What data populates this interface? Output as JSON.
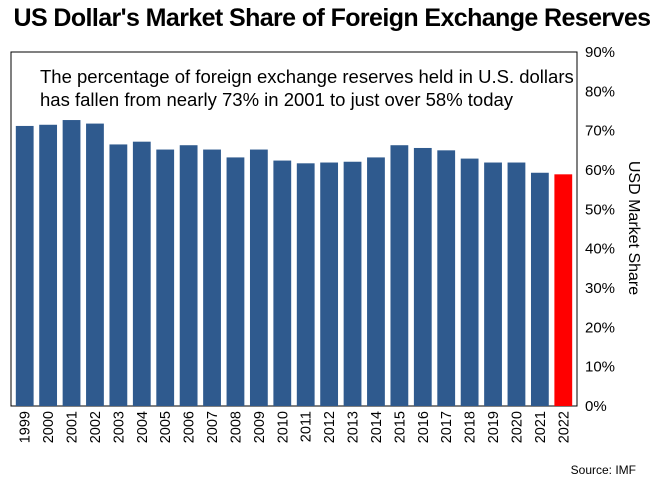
{
  "chart_data": {
    "type": "bar",
    "title": "US Dollar's Market Share of Foreign Exchange Reserves",
    "annotation": [
      "The percentage of foreign exchange reserves held in U.S. dollars",
      "has fallen from nearly 73% in 2001 to just over 58% today"
    ],
    "ylabel": "USD Market Share",
    "xlabel": "",
    "ylim": [
      0,
      90
    ],
    "yticks": [
      "0%",
      "10%",
      "20%",
      "30%",
      "40%",
      "50%",
      "60%",
      "70%",
      "80%",
      "90%"
    ],
    "y_axis_position": "right",
    "grid": false,
    "categories": [
      "1999",
      "2000",
      "2001",
      "2002",
      "2003",
      "2004",
      "2005",
      "2006",
      "2007",
      "2008",
      "2009",
      "2010",
      "2011",
      "2012",
      "2013",
      "2014",
      "2015",
      "2016",
      "2017",
      "2018",
      "2019",
      "2020",
      "2021",
      "2022"
    ],
    "values": [
      71.2,
      71.5,
      72.7,
      71.8,
      66.5,
      67.2,
      65.2,
      66.3,
      65.2,
      63.2,
      65.2,
      62.4,
      61.7,
      61.9,
      62.1,
      63.2,
      66.3,
      65.6,
      65.0,
      62.9,
      61.9,
      61.9,
      59.3,
      58.9
    ],
    "colors": {
      "bar": "#2f5a8e",
      "highlight": "#ff0000",
      "highlight_category": "2022",
      "frame": "#000000"
    },
    "source": "Source: IMF"
  }
}
